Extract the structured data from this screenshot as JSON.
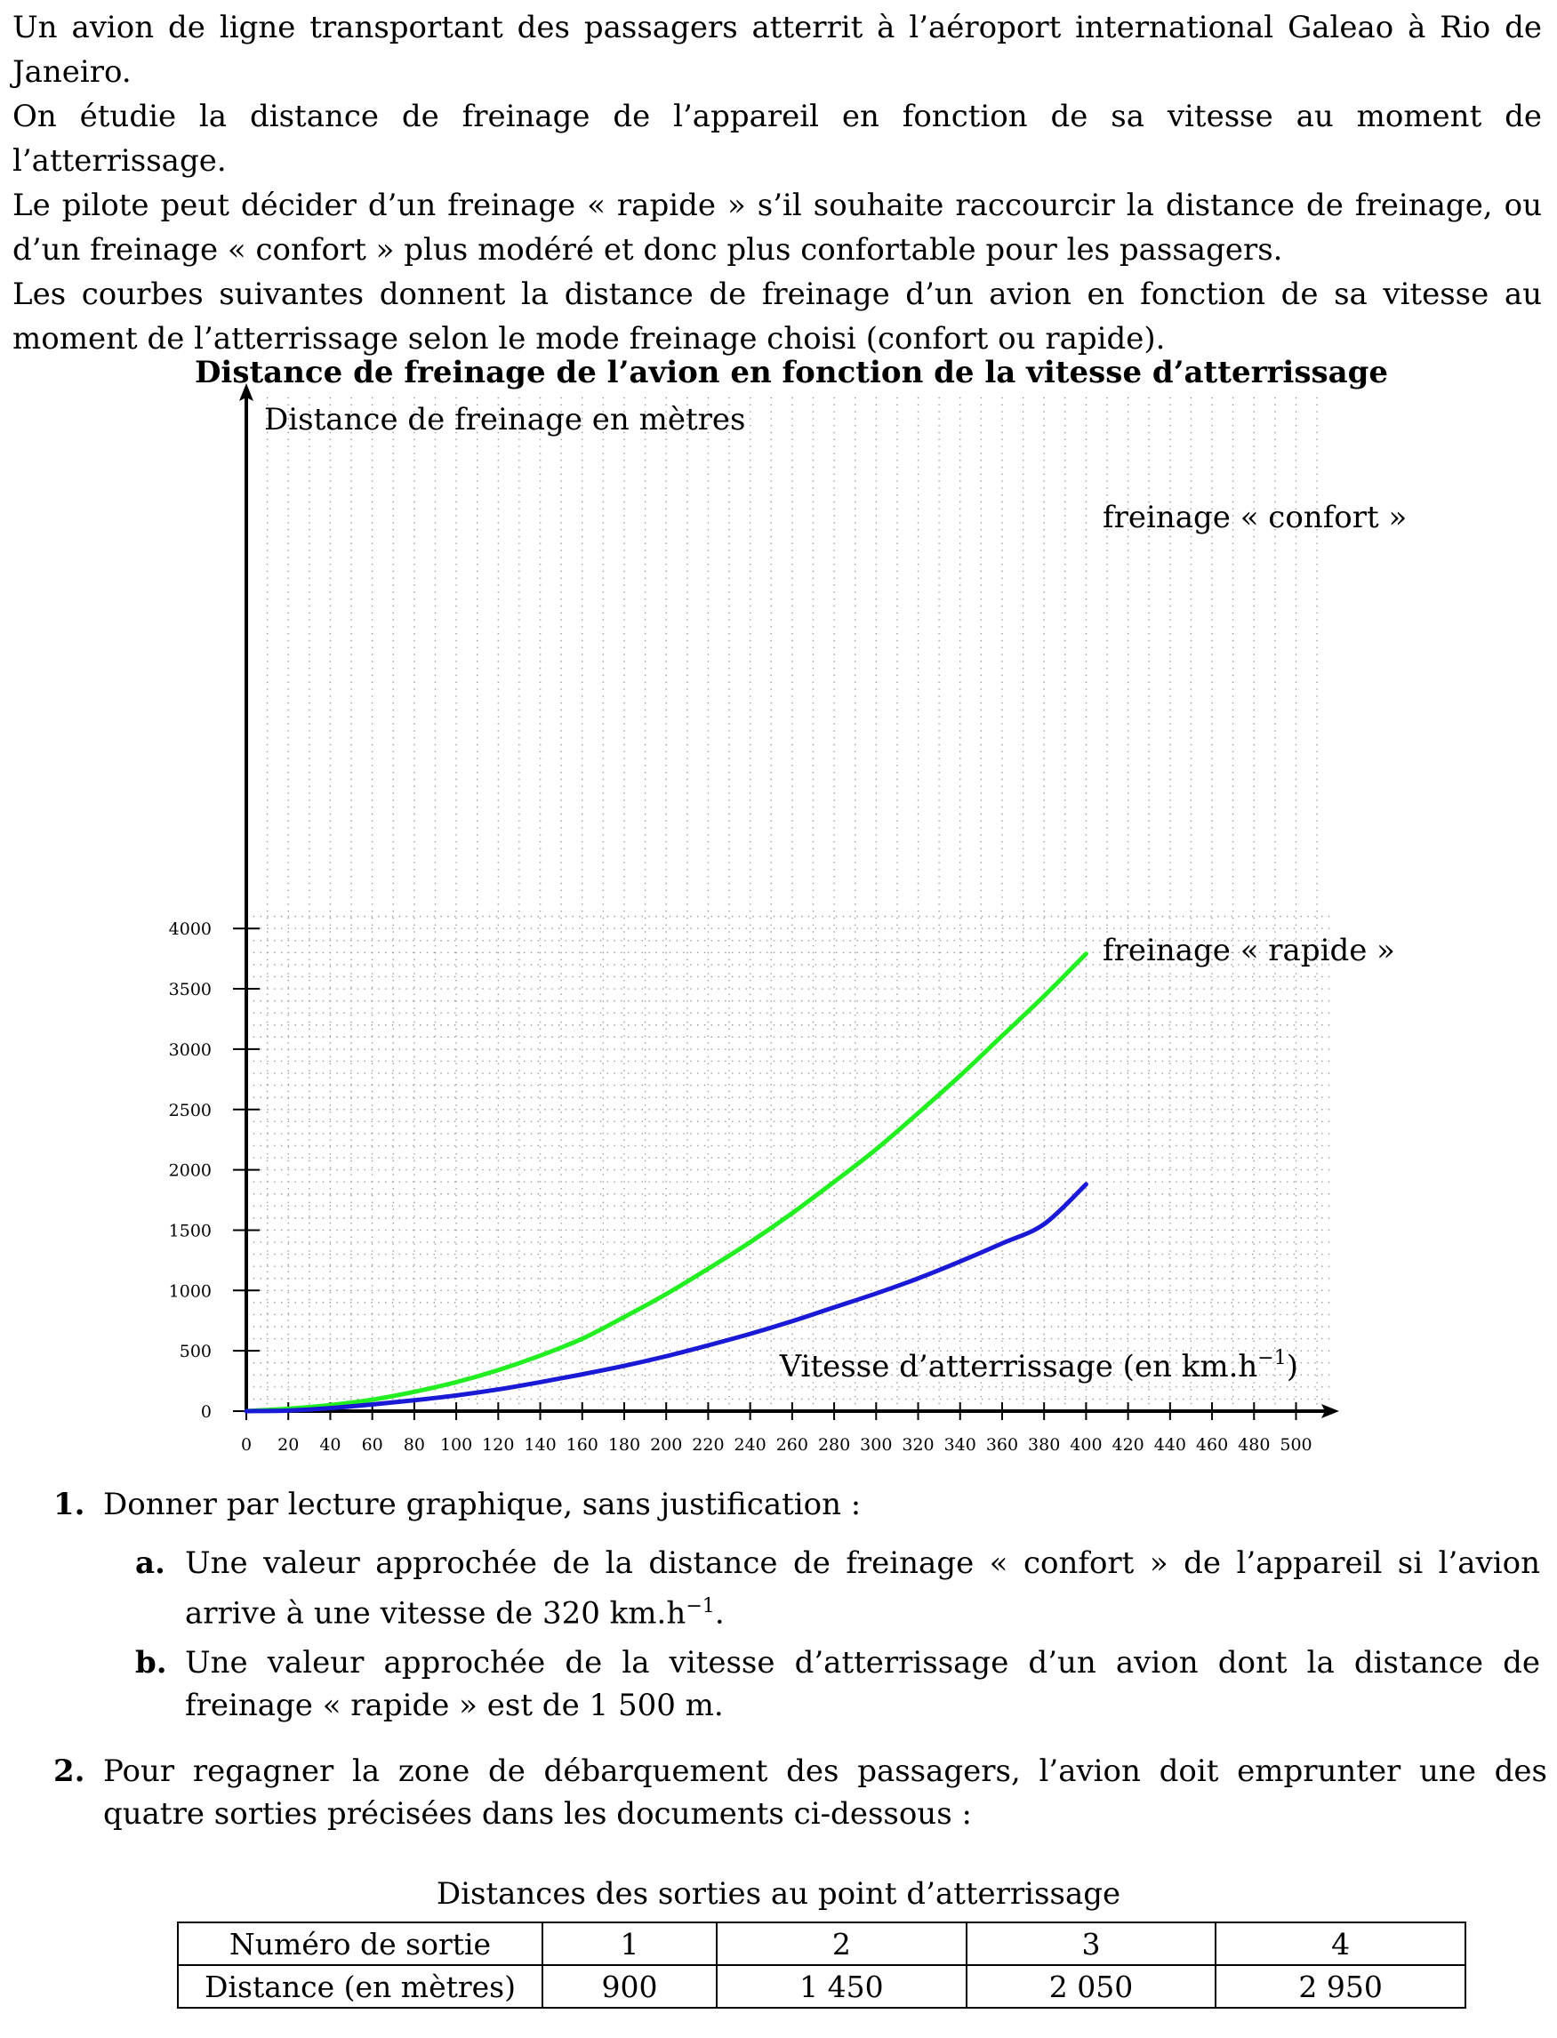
{
  "intro": {
    "p1": "Un avion de ligne transportant des passagers atterrit à l’aéroport international Galeao à Rio de Janeiro.",
    "p2": "On étudie la distance de freinage de l’appareil en fonction de sa vitesse au moment de l’atterrissage.",
    "p3": "Le pilote peut décider d’un freinage « rapide » s’il souhaite raccourcir la distance de freinage, ou d’un freinage « confort » plus modéré et donc plus confortable pour les passagers.",
    "p4": "Les courbes suivantes donnent la distance de freinage d’un avion en fonction de sa vitesse au moment de l’atterrissage selon le mode freinage choisi (confort ou rapide)."
  },
  "chart_data": {
    "type": "line",
    "title": "Distance de freinage de l’avion en fonction de la vitesse d’atterrissage",
    "ylabel": "Distance de freinage en mètres",
    "xlabel": "Vitesse d’atterrissage (en km.h",
    "xlabel_exp": "−1",
    "xlabel_close": ")",
    "xlim": [
      0,
      520
    ],
    "ylim": [
      0,
      4100
    ],
    "xticks": [
      0,
      20,
      40,
      60,
      80,
      100,
      120,
      140,
      160,
      180,
      200,
      220,
      240,
      260,
      280,
      300,
      320,
      340,
      360,
      380,
      400,
      420,
      440,
      460,
      480,
      500
    ],
    "yticks": [
      0,
      500,
      1000,
      1500,
      2000,
      2500,
      3000,
      3500,
      4000
    ],
    "grid": "dotted",
    "series": [
      {
        "name": "freinage « confort »",
        "color": "#22ee22",
        "x": [
          0,
          20,
          40,
          60,
          80,
          100,
          120,
          140,
          160,
          180,
          200,
          220,
          240,
          260,
          280,
          300,
          320,
          340,
          360,
          380,
          400
        ],
        "y": [
          0,
          20,
          50,
          95,
          160,
          240,
          340,
          460,
          600,
          780,
          970,
          1180,
          1400,
          1640,
          1900,
          2170,
          2470,
          2780,
          3110,
          3440,
          3790
        ]
      },
      {
        "name": "freinage « rapide »",
        "color": "#1a1ad6",
        "x": [
          0,
          20,
          40,
          60,
          80,
          100,
          120,
          140,
          160,
          180,
          200,
          220,
          240,
          260,
          280,
          300,
          320,
          340,
          360,
          380,
          400
        ],
        "y": [
          0,
          5,
          25,
          55,
          90,
          130,
          180,
          240,
          305,
          375,
          455,
          545,
          640,
          745,
          860,
          975,
          1100,
          1240,
          1390,
          1550,
          1880
        ]
      }
    ]
  },
  "questions": {
    "q1_num": "1.",
    "q1_text": "Donner par lecture graphique, sans justification :",
    "q1a_label": "a.",
    "q1a_text": "Une valeur approchée de la distance de freinage « confort » de l’appareil si l’avion arrive à une vitesse de 320 km.h",
    "q1a_exp": "−1",
    "q1a_end": ".",
    "q1b_label": "b.",
    "q1b_text": "Une valeur approchée de la vitesse d’atterrissage d’un avion dont la distance de freinage « rapide » est de 1 500 m.",
    "q2_num": "2.",
    "q2_text": "Pour regagner la zone de débarquement des passagers, l’avion doit emprunter une des quatre sorties précisées dans les documents ci-dessous :"
  },
  "table": {
    "caption": "Distances des sorties au point d’atterrissage",
    "row_headers": [
      "Numéro de sortie",
      "Distance (en mètres)"
    ],
    "exits": [
      "1",
      "2",
      "3",
      "4"
    ],
    "distances": [
      "900",
      "1 450",
      "2 050",
      "2 950"
    ]
  }
}
